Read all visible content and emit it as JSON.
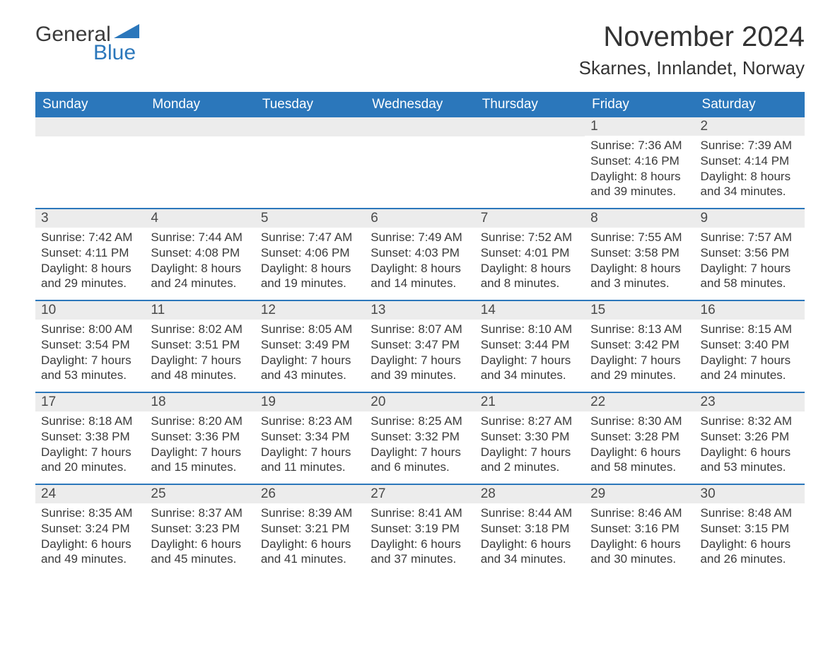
{
  "logo": {
    "word1": "General",
    "word2": "Blue",
    "triangle_color": "#2b77bb"
  },
  "title": "November 2024",
  "location": "Skarnes, Innlandet, Norway",
  "colors": {
    "header_bg": "#2b77bb",
    "header_text": "#ffffff",
    "daynum_bg": "#ececec",
    "row_border": "#2b77bb",
    "body_text": "#3a3a3a",
    "page_bg": "#ffffff"
  },
  "day_headers": [
    "Sunday",
    "Monday",
    "Tuesday",
    "Wednesday",
    "Thursday",
    "Friday",
    "Saturday"
  ],
  "weeks": [
    [
      null,
      null,
      null,
      null,
      null,
      {
        "n": "1",
        "sunrise": "Sunrise: 7:36 AM",
        "sunset": "Sunset: 4:16 PM",
        "dl1": "Daylight: 8 hours",
        "dl2": "and 39 minutes."
      },
      {
        "n": "2",
        "sunrise": "Sunrise: 7:39 AM",
        "sunset": "Sunset: 4:14 PM",
        "dl1": "Daylight: 8 hours",
        "dl2": "and 34 minutes."
      }
    ],
    [
      {
        "n": "3",
        "sunrise": "Sunrise: 7:42 AM",
        "sunset": "Sunset: 4:11 PM",
        "dl1": "Daylight: 8 hours",
        "dl2": "and 29 minutes."
      },
      {
        "n": "4",
        "sunrise": "Sunrise: 7:44 AM",
        "sunset": "Sunset: 4:08 PM",
        "dl1": "Daylight: 8 hours",
        "dl2": "and 24 minutes."
      },
      {
        "n": "5",
        "sunrise": "Sunrise: 7:47 AM",
        "sunset": "Sunset: 4:06 PM",
        "dl1": "Daylight: 8 hours",
        "dl2": "and 19 minutes."
      },
      {
        "n": "6",
        "sunrise": "Sunrise: 7:49 AM",
        "sunset": "Sunset: 4:03 PM",
        "dl1": "Daylight: 8 hours",
        "dl2": "and 14 minutes."
      },
      {
        "n": "7",
        "sunrise": "Sunrise: 7:52 AM",
        "sunset": "Sunset: 4:01 PM",
        "dl1": "Daylight: 8 hours",
        "dl2": "and 8 minutes."
      },
      {
        "n": "8",
        "sunrise": "Sunrise: 7:55 AM",
        "sunset": "Sunset: 3:58 PM",
        "dl1": "Daylight: 8 hours",
        "dl2": "and 3 minutes."
      },
      {
        "n": "9",
        "sunrise": "Sunrise: 7:57 AM",
        "sunset": "Sunset: 3:56 PM",
        "dl1": "Daylight: 7 hours",
        "dl2": "and 58 minutes."
      }
    ],
    [
      {
        "n": "10",
        "sunrise": "Sunrise: 8:00 AM",
        "sunset": "Sunset: 3:54 PM",
        "dl1": "Daylight: 7 hours",
        "dl2": "and 53 minutes."
      },
      {
        "n": "11",
        "sunrise": "Sunrise: 8:02 AM",
        "sunset": "Sunset: 3:51 PM",
        "dl1": "Daylight: 7 hours",
        "dl2": "and 48 minutes."
      },
      {
        "n": "12",
        "sunrise": "Sunrise: 8:05 AM",
        "sunset": "Sunset: 3:49 PM",
        "dl1": "Daylight: 7 hours",
        "dl2": "and 43 minutes."
      },
      {
        "n": "13",
        "sunrise": "Sunrise: 8:07 AM",
        "sunset": "Sunset: 3:47 PM",
        "dl1": "Daylight: 7 hours",
        "dl2": "and 39 minutes."
      },
      {
        "n": "14",
        "sunrise": "Sunrise: 8:10 AM",
        "sunset": "Sunset: 3:44 PM",
        "dl1": "Daylight: 7 hours",
        "dl2": "and 34 minutes."
      },
      {
        "n": "15",
        "sunrise": "Sunrise: 8:13 AM",
        "sunset": "Sunset: 3:42 PM",
        "dl1": "Daylight: 7 hours",
        "dl2": "and 29 minutes."
      },
      {
        "n": "16",
        "sunrise": "Sunrise: 8:15 AM",
        "sunset": "Sunset: 3:40 PM",
        "dl1": "Daylight: 7 hours",
        "dl2": "and 24 minutes."
      }
    ],
    [
      {
        "n": "17",
        "sunrise": "Sunrise: 8:18 AM",
        "sunset": "Sunset: 3:38 PM",
        "dl1": "Daylight: 7 hours",
        "dl2": "and 20 minutes."
      },
      {
        "n": "18",
        "sunrise": "Sunrise: 8:20 AM",
        "sunset": "Sunset: 3:36 PM",
        "dl1": "Daylight: 7 hours",
        "dl2": "and 15 minutes."
      },
      {
        "n": "19",
        "sunrise": "Sunrise: 8:23 AM",
        "sunset": "Sunset: 3:34 PM",
        "dl1": "Daylight: 7 hours",
        "dl2": "and 11 minutes."
      },
      {
        "n": "20",
        "sunrise": "Sunrise: 8:25 AM",
        "sunset": "Sunset: 3:32 PM",
        "dl1": "Daylight: 7 hours",
        "dl2": "and 6 minutes."
      },
      {
        "n": "21",
        "sunrise": "Sunrise: 8:27 AM",
        "sunset": "Sunset: 3:30 PM",
        "dl1": "Daylight: 7 hours",
        "dl2": "and 2 minutes."
      },
      {
        "n": "22",
        "sunrise": "Sunrise: 8:30 AM",
        "sunset": "Sunset: 3:28 PM",
        "dl1": "Daylight: 6 hours",
        "dl2": "and 58 minutes."
      },
      {
        "n": "23",
        "sunrise": "Sunrise: 8:32 AM",
        "sunset": "Sunset: 3:26 PM",
        "dl1": "Daylight: 6 hours",
        "dl2": "and 53 minutes."
      }
    ],
    [
      {
        "n": "24",
        "sunrise": "Sunrise: 8:35 AM",
        "sunset": "Sunset: 3:24 PM",
        "dl1": "Daylight: 6 hours",
        "dl2": "and 49 minutes."
      },
      {
        "n": "25",
        "sunrise": "Sunrise: 8:37 AM",
        "sunset": "Sunset: 3:23 PM",
        "dl1": "Daylight: 6 hours",
        "dl2": "and 45 minutes."
      },
      {
        "n": "26",
        "sunrise": "Sunrise: 8:39 AM",
        "sunset": "Sunset: 3:21 PM",
        "dl1": "Daylight: 6 hours",
        "dl2": "and 41 minutes."
      },
      {
        "n": "27",
        "sunrise": "Sunrise: 8:41 AM",
        "sunset": "Sunset: 3:19 PM",
        "dl1": "Daylight: 6 hours",
        "dl2": "and 37 minutes."
      },
      {
        "n": "28",
        "sunrise": "Sunrise: 8:44 AM",
        "sunset": "Sunset: 3:18 PM",
        "dl1": "Daylight: 6 hours",
        "dl2": "and 34 minutes."
      },
      {
        "n": "29",
        "sunrise": "Sunrise: 8:46 AM",
        "sunset": "Sunset: 3:16 PM",
        "dl1": "Daylight: 6 hours",
        "dl2": "and 30 minutes."
      },
      {
        "n": "30",
        "sunrise": "Sunrise: 8:48 AM",
        "sunset": "Sunset: 3:15 PM",
        "dl1": "Daylight: 6 hours",
        "dl2": "and 26 minutes."
      }
    ]
  ]
}
